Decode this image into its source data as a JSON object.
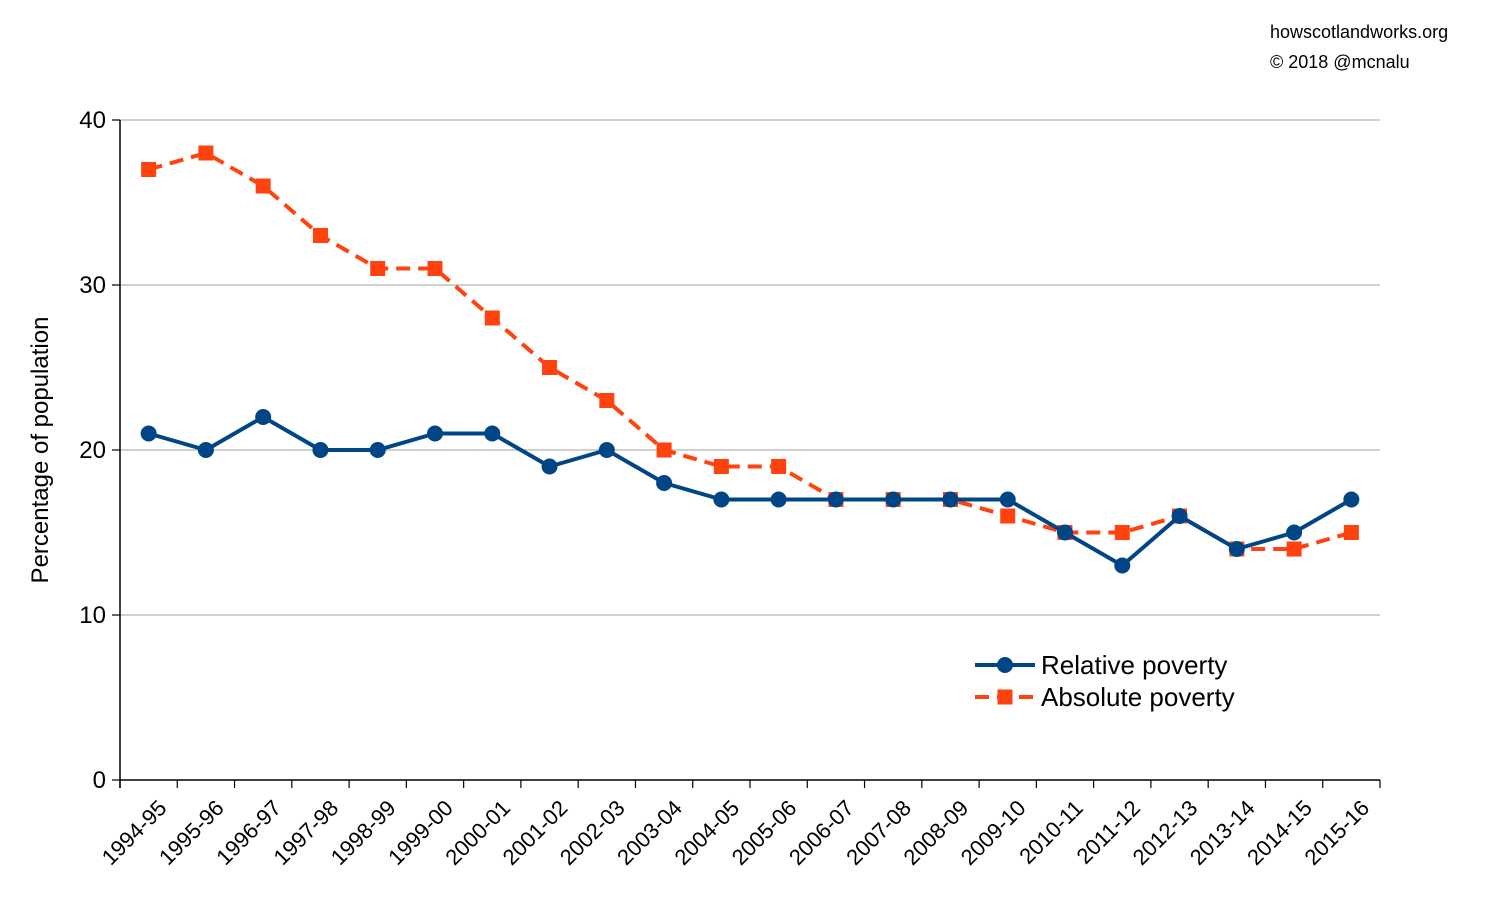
{
  "credits": {
    "site": "howscotlandworks.org",
    "copyright": "© 2018  @mcnalu"
  },
  "chart_data": {
    "type": "line",
    "title": "",
    "xlabel": "",
    "ylabel": "Percentage of population",
    "ylim": [
      0,
      40
    ],
    "yticks": [
      0,
      10,
      20,
      30,
      40
    ],
    "grid": true,
    "legend_position": "bottom-right",
    "categories": [
      "1994-95",
      "1995-96",
      "1996-97",
      "1997-98",
      "1998-99",
      "1999-00",
      "2000-01",
      "2001-02",
      "2002-03",
      "2003-04",
      "2004-05",
      "2005-06",
      "2006-07",
      "2007-08",
      "2008-09",
      "2009-10",
      "2010-11",
      "2011-12",
      "2012-13",
      "2013-14",
      "2014-15",
      "2015-16"
    ],
    "series": [
      {
        "name": "Relative poverty",
        "color": "#004586",
        "marker": "circle",
        "dash": "solid",
        "values": [
          21,
          20,
          22,
          20,
          20,
          21,
          21,
          19,
          20,
          18,
          17,
          17,
          17,
          17,
          17,
          17,
          15,
          13,
          16,
          14,
          15,
          17
        ]
      },
      {
        "name": "Absolute poverty",
        "color": "#ff420e",
        "marker": "square",
        "dash": "dashed",
        "values": [
          37,
          38,
          36,
          33,
          31,
          31,
          28,
          25,
          23,
          20,
          19,
          19,
          17,
          17,
          17,
          16,
          15,
          15,
          16,
          14,
          14,
          15
        ]
      }
    ]
  }
}
